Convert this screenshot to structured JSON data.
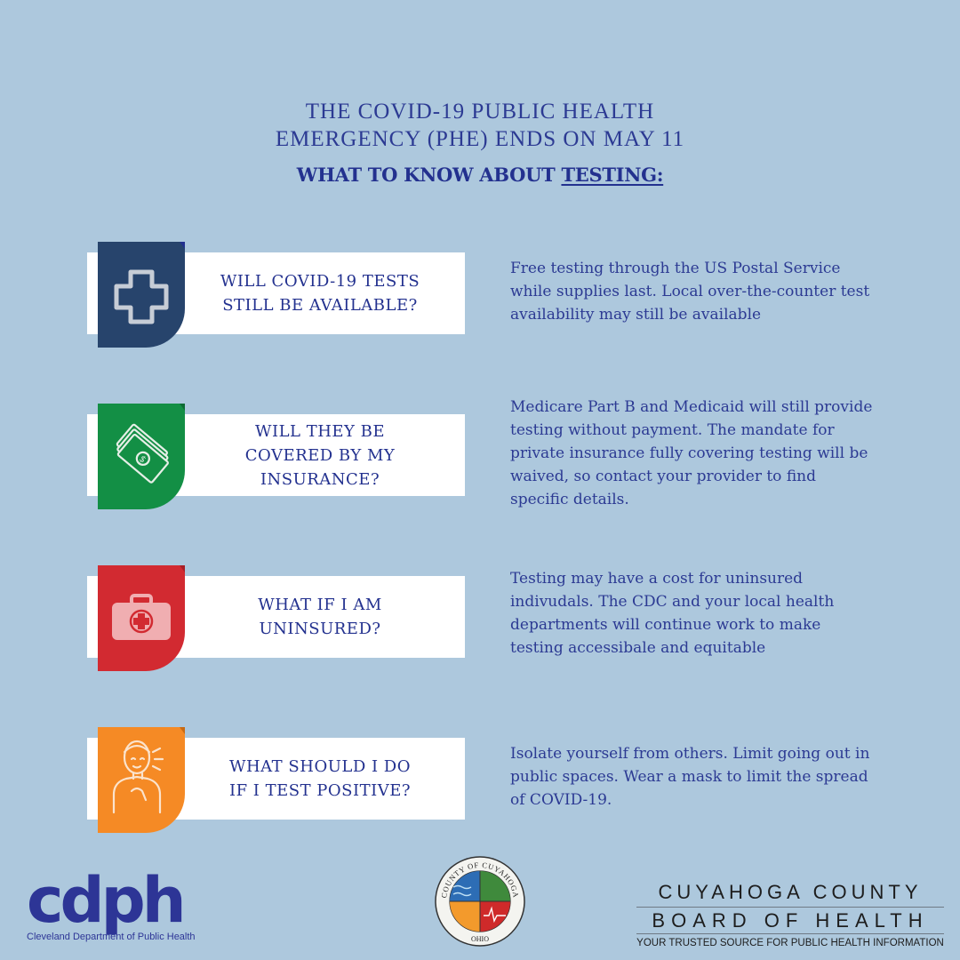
{
  "header": {
    "title_line1": "THE COVID-19 PUBLIC HEALTH",
    "title_line2": "EMERGENCY (PHE) ENDS ON MAY 11",
    "subtitle_prefix": "WHAT TO KNOW ABOUT ",
    "subtitle_underlined": "TESTING:"
  },
  "faq": [
    {
      "icon": "medical-cross-icon",
      "color": "#27446c",
      "question_lines": [
        "WILL COVID-19 TESTS",
        "STILL BE AVAILABLE?"
      ],
      "answer_lines": [
        "Free testing through the US Postal Service",
        "while supplies last. Local over-the-counter test",
        "availability may still be available"
      ]
    },
    {
      "icon": "money-icon",
      "color": "#138f45",
      "question_lines": [
        "WILL THEY BE",
        "COVERED BY MY",
        "INSURANCE?"
      ],
      "answer_lines": [
        "Medicare Part B and Medicaid will still provide",
        "testing without payment. The mandate for",
        "private insurance fully covering testing will be",
        "waived, so contact your provider to find",
        "specific details."
      ]
    },
    {
      "icon": "first-aid-kit-icon",
      "color": "#d22a31",
      "question_lines": [
        "WHAT IF I AM",
        "UNINSURED?"
      ],
      "answer_lines": [
        "Testing may have a cost for uninsured",
        "indivudals. The CDC and your local health",
        "departments will continue work to make",
        "testing accessibale and equitable"
      ]
    },
    {
      "icon": "sick-person-icon",
      "color": "#f58a25",
      "question_lines": [
        "WHAT SHOULD I DO",
        "IF I TEST POSITIVE?"
      ],
      "answer_lines": [
        "Isolate yourself from others. Limit going out in",
        "public spaces. Wear a mask to limit the spread",
        "of COVID-19."
      ]
    }
  ],
  "footer": {
    "cdph_logo_text": "cdph",
    "cdph_name": "Cleveland Department of Public Health",
    "seal_top": "COUNTY OF CUYAHOGA",
    "seal_bottom": "OHIO",
    "ccbh_line1": "CUYAHOGA COUNTY",
    "ccbh_line2": "BOARD OF HEALTH",
    "ccbh_tagline": "YOUR TRUSTED SOURCE FOR PUBLIC HEALTH INFORMATION"
  }
}
